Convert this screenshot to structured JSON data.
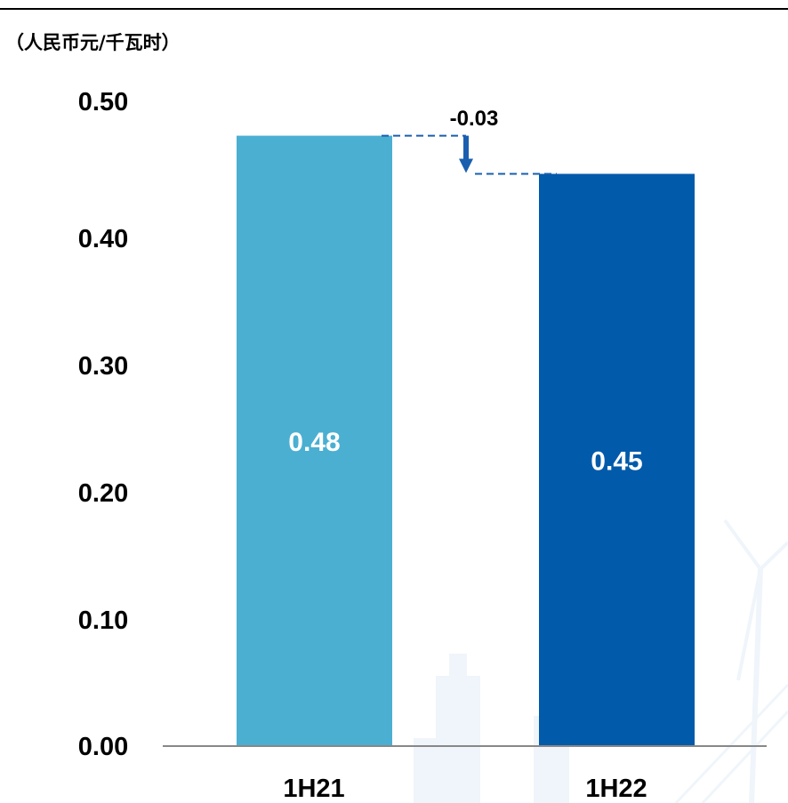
{
  "chart_data": {
    "type": "bar",
    "unit_label": "（人民币元/千瓦时）",
    "categories": [
      "1H21",
      "1H22"
    ],
    "values": [
      0.48,
      0.45
    ],
    "value_labels": [
      "0.48",
      "0.45"
    ],
    "yticks": [
      "0.00",
      "0.10",
      "0.20",
      "0.30",
      "0.40",
      "0.50"
    ],
    "ylim": [
      0,
      0.5
    ],
    "delta_label": "-0.03",
    "colors": [
      "#4BAFD2",
      "#015AAA"
    ],
    "connector_color": "#1A5FAE",
    "axis_color": "#888888",
    "grid": false,
    "legend": "none",
    "title": "",
    "xlabel": "",
    "ylabel": ""
  }
}
